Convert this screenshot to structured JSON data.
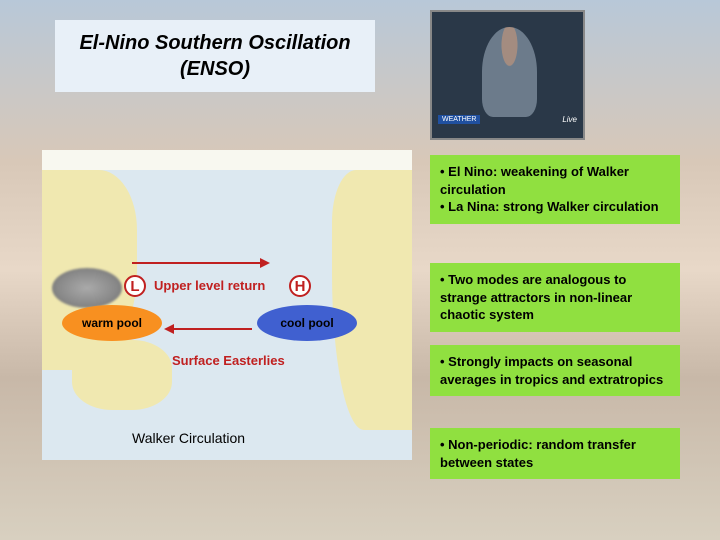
{
  "title": "El-Nino Southern Oscillation (ENSO)",
  "photo": {
    "banner": "WEATHER",
    "live": "Live"
  },
  "map": {
    "upper_label": "Upper level return",
    "surface_label": "Surface Easterlies",
    "L": "L",
    "H": "H",
    "warm_pool": "warm pool",
    "cool_pool": "cool pool",
    "caption": "Walker Circulation",
    "colors": {
      "warm": "#f89020",
      "cool": "#4060d0",
      "arrow": "#c02020",
      "land": "#f0e8b0",
      "ocean": "#dce8f0"
    }
  },
  "bullets": {
    "b1": "• El Nino: weakening of Walker circulation\n• La Nina: strong Walker circulation",
    "b2": "• Two modes are analogous to strange attractors in non-linear chaotic system",
    "b3": "• Strongly impacts on seasonal averages in tropics and extratropics",
    "b4": "• Non-periodic: random transfer between states"
  },
  "style": {
    "box_bg": "#90e040",
    "title_bg": "#e8f0f8",
    "body_font": "Arial",
    "title_fontsize": 20,
    "bullet_fontsize": 13
  }
}
